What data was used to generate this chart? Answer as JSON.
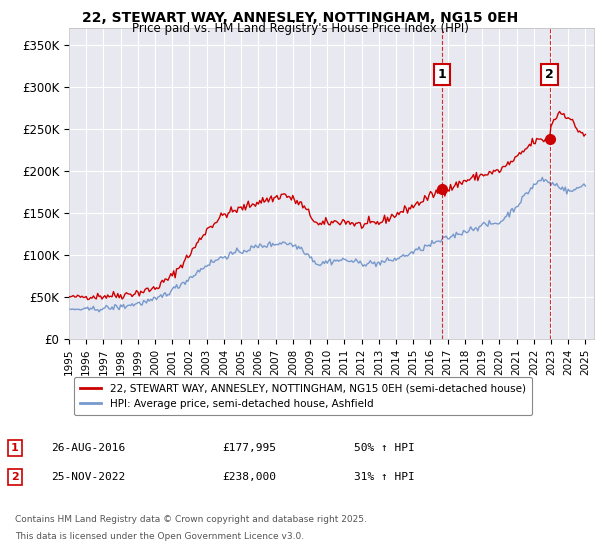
{
  "title": "22, STEWART WAY, ANNESLEY, NOTTINGHAM, NG15 0EH",
  "subtitle": "Price paid vs. HM Land Registry's House Price Index (HPI)",
  "ylim": [
    0,
    370000
  ],
  "yticks": [
    0,
    50000,
    100000,
    150000,
    200000,
    250000,
    300000,
    350000
  ],
  "ytick_labels": [
    "£0",
    "£50K",
    "£100K",
    "£150K",
    "£200K",
    "£250K",
    "£300K",
    "£350K"
  ],
  "background_color": "#ffffff",
  "plot_bg_color": "#e8e8f0",
  "grid_color": "#ffffff",
  "line1_color": "#cc0000",
  "line2_color": "#7799cc",
  "vline_color": "#cc0000",
  "marker_color": "#cc0000",
  "purchase1_year": 2016.667,
  "purchase1_value": 177995,
  "purchase2_year": 2022.917,
  "purchase2_value": 238000,
  "legend_label1": "22, STEWART WAY, ANNESLEY, NOTTINGHAM, NG15 0EH (semi-detached house)",
  "legend_label2": "HPI: Average price, semi-detached house, Ashfield",
  "footer_line1": "Contains HM Land Registry data © Crown copyright and database right 2025.",
  "footer_line2": "This data is licensed under the Open Government Licence v3.0.",
  "annotation1_num": "1",
  "annotation1_date": "26-AUG-2016",
  "annotation1_price": "£177,995",
  "annotation1_hpi": "50% ↑ HPI",
  "annotation2_num": "2",
  "annotation2_date": "25-NOV-2022",
  "annotation2_price": "£238,000",
  "annotation2_hpi": "31% ↑ HPI",
  "xlim_left": 1995.0,
  "xlim_right": 2025.5,
  "red_pts_x": [
    1995.0,
    1996.0,
    1997.0,
    1998.0,
    1999.0,
    2000.0,
    2001.0,
    2002.0,
    2003.0,
    2004.0,
    2005.0,
    2006.0,
    2007.0,
    2007.5,
    2008.5,
    2009.5,
    2010.0,
    2011.0,
    2012.0,
    2013.0,
    2014.0,
    2015.0,
    2016.0,
    2016.667,
    2017.0,
    2018.0,
    2019.0,
    2020.0,
    2021.0,
    2022.0,
    2022.917,
    2023.0,
    2023.5,
    2024.0,
    2024.5,
    2025.0
  ],
  "red_pts_y": [
    50000,
    50000,
    51000,
    52000,
    55000,
    60000,
    75000,
    100000,
    130000,
    148000,
    155000,
    163000,
    168000,
    172000,
    160000,
    135000,
    138000,
    140000,
    135000,
    138000,
    148000,
    158000,
    170000,
    177995,
    178000,
    188000,
    195000,
    200000,
    215000,
    235000,
    238000,
    255000,
    270000,
    265000,
    250000,
    242000
  ],
  "blue_pts_x": [
    1995.0,
    1996.0,
    1997.0,
    1998.0,
    1999.0,
    2000.0,
    2001.0,
    2002.0,
    2003.0,
    2004.0,
    2005.0,
    2006.0,
    2007.0,
    2007.5,
    2008.5,
    2009.5,
    2010.0,
    2011.0,
    2012.0,
    2013.0,
    2014.0,
    2015.0,
    2016.0,
    2017.0,
    2018.0,
    2019.0,
    2020.0,
    2021.0,
    2022.0,
    2022.5,
    2023.0,
    2023.5,
    2024.0,
    2024.5,
    2025.0
  ],
  "blue_pts_y": [
    35000,
    35000,
    36000,
    38000,
    42000,
    46000,
    58000,
    72000,
    88000,
    98000,
    104000,
    110000,
    113000,
    115000,
    108000,
    88000,
    92000,
    94000,
    90000,
    90000,
    95000,
    103000,
    112000,
    120000,
    128000,
    135000,
    138000,
    158000,
    183000,
    190000,
    185000,
    182000,
    175000,
    178000,
    185000
  ]
}
